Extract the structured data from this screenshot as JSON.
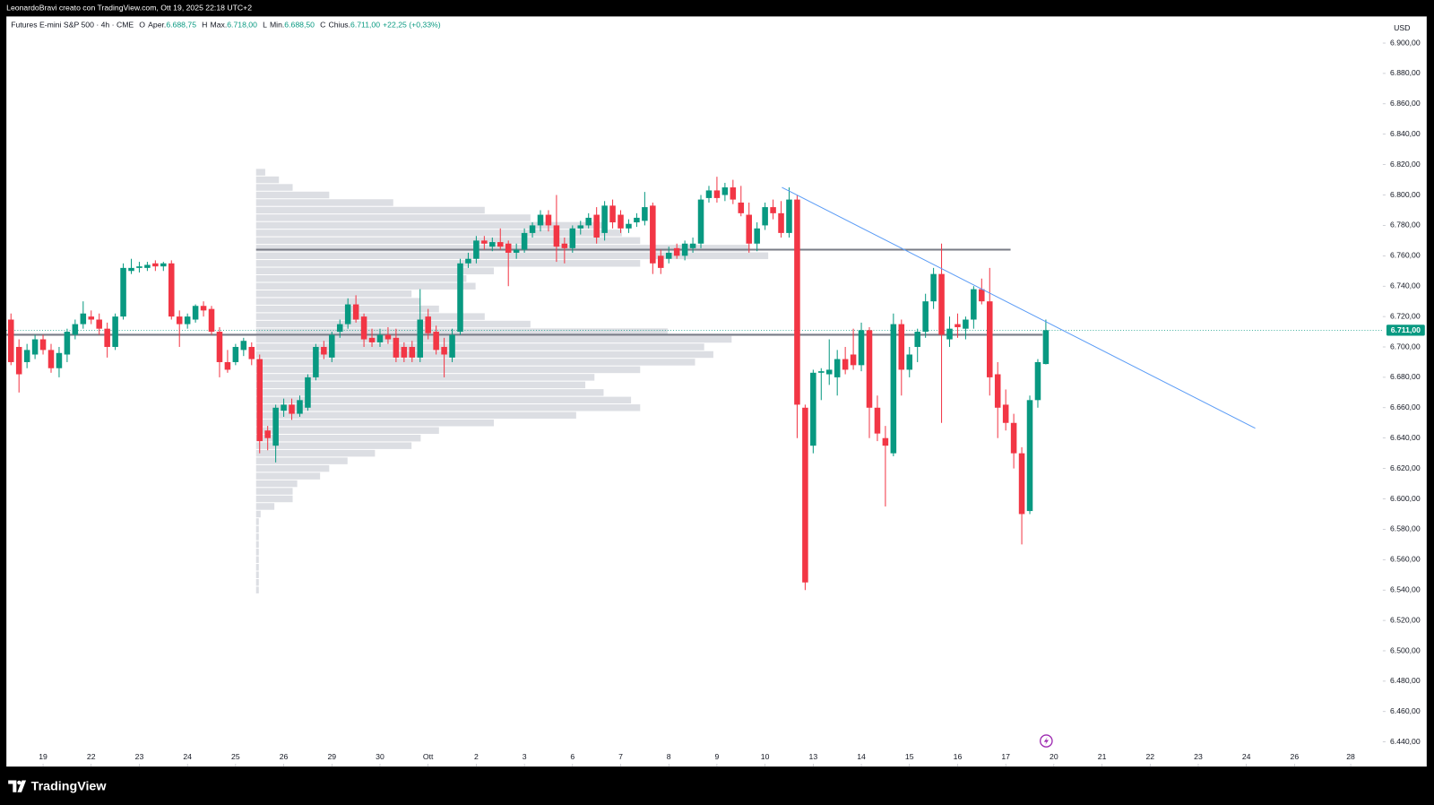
{
  "top_bar": {
    "credit": "LeonardoBravi creato con TradingView.com, Ott 19, 2025 22:18 UTC+2"
  },
  "chart_data": {
    "type": "candlestick",
    "symbol": "Futures E-mini S&P 500 · 4h · CME",
    "legend": [
      {
        "key": "O",
        "name": "Aper.",
        "value": "6.688,75"
      },
      {
        "key": "H",
        "name": "Max.",
        "value": "6.718,00"
      },
      {
        "key": "L",
        "name": "Min.",
        "value": "6.688,50"
      },
      {
        "key": "C",
        "name": "Chius.",
        "value": "6.711,00"
      }
    ],
    "change": "+22,25 (+0,33%)",
    "currency": "USD",
    "up_color": "#089981",
    "down_color": "#f23645",
    "candles": [
      [
        6718,
        6722,
        6688,
        6690
      ],
      [
        6700,
        6705,
        6670,
        6682
      ],
      [
        6690,
        6702,
        6686,
        6698
      ],
      [
        6695,
        6708,
        6692,
        6705
      ],
      [
        6705,
        6708,
        6695,
        6698
      ],
      [
        6698,
        6702,
        6683,
        6686
      ],
      [
        6686,
        6700,
        6680,
        6696
      ],
      [
        6695,
        6712,
        6690,
        6710
      ],
      [
        6708,
        6718,
        6705,
        6715
      ],
      [
        6715,
        6730,
        6712,
        6722
      ],
      [
        6720,
        6724,
        6715,
        6718
      ],
      [
        6718,
        6722,
        6708,
        6712
      ],
      [
        6712,
        6716,
        6693,
        6700
      ],
      [
        6700,
        6722,
        6698,
        6720
      ],
      [
        6720,
        6755,
        6718,
        6752
      ],
      [
        6750,
        6758,
        6748,
        6752
      ],
      [
        6752,
        6756,
        6749,
        6753
      ],
      [
        6752,
        6756,
        6750,
        6754
      ],
      [
        6755,
        6757,
        6750,
        6753
      ],
      [
        6753,
        6756,
        6750,
        6755
      ],
      [
        6755,
        6757,
        6718,
        6720
      ],
      [
        6720,
        6724,
        6700,
        6715
      ],
      [
        6715,
        6722,
        6712,
        6720
      ],
      [
        6718,
        6728,
        6716,
        6727
      ],
      [
        6727,
        6730,
        6720,
        6724
      ],
      [
        6725,
        6727,
        6708,
        6710
      ],
      [
        6710,
        6713,
        6680,
        6690
      ],
      [
        6690,
        6698,
        6683,
        6685
      ],
      [
        6690,
        6702,
        6688,
        6700
      ],
      [
        6698,
        6706,
        6694,
        6704
      ],
      [
        6700,
        6703,
        6688,
        6692
      ],
      [
        6692,
        6695,
        6630,
        6638
      ],
      [
        6645,
        6648,
        6632,
        6640
      ],
      [
        6635,
        6662,
        6624,
        6660
      ],
      [
        6658,
        6666,
        6654,
        6662
      ],
      [
        6662,
        6666,
        6652,
        6656
      ],
      [
        6656,
        6668,
        6654,
        6665
      ],
      [
        6660,
        6682,
        6658,
        6680
      ],
      [
        6680,
        6702,
        6678,
        6700
      ],
      [
        6700,
        6704,
        6692,
        6695
      ],
      [
        6693,
        6710,
        6690,
        6708
      ],
      [
        6710,
        6718,
        6706,
        6715
      ],
      [
        6715,
        6732,
        6712,
        6728
      ],
      [
        6728,
        6734,
        6716,
        6718
      ],
      [
        6720,
        6722,
        6700,
        6705
      ],
      [
        6706,
        6712,
        6700,
        6703
      ],
      [
        6703,
        6712,
        6700,
        6708
      ],
      [
        6708,
        6713,
        6702,
        6705
      ],
      [
        6706,
        6712,
        6690,
        6693
      ],
      [
        6700,
        6703,
        6690,
        6693
      ],
      [
        6700,
        6704,
        6690,
        6693
      ],
      [
        6693,
        6738,
        6690,
        6718
      ],
      [
        6720,
        6725,
        6705,
        6709
      ],
      [
        6710,
        6714,
        6695,
        6698
      ],
      [
        6700,
        6706,
        6680,
        6695
      ],
      [
        6693,
        6712,
        6690,
        6708
      ],
      [
        6710,
        6758,
        6708,
        6755
      ],
      [
        6755,
        6762,
        6752,
        6758
      ],
      [
        6758,
        6773,
        6755,
        6770
      ],
      [
        6770,
        6773,
        6764,
        6768
      ],
      [
        6766,
        6772,
        6763,
        6769
      ],
      [
        6769,
        6778,
        6764,
        6766
      ],
      [
        6768,
        6770,
        6740,
        6762
      ],
      [
        6762,
        6768,
        6758,
        6764
      ],
      [
        6764,
        6778,
        6762,
        6775
      ],
      [
        6775,
        6782,
        6772,
        6780
      ],
      [
        6780,
        6790,
        6776,
        6787
      ],
      [
        6787,
        6790,
        6776,
        6780
      ],
      [
        6780,
        6800,
        6756,
        6766
      ],
      [
        6768,
        6772,
        6755,
        6765
      ],
      [
        6765,
        6780,
        6762,
        6778
      ],
      [
        6778,
        6783,
        6774,
        6780
      ],
      [
        6780,
        6788,
        6778,
        6785
      ],
      [
        6787,
        6792,
        6768,
        6772
      ],
      [
        6775,
        6796,
        6770,
        6793
      ],
      [
        6793,
        6797,
        6778,
        6782
      ],
      [
        6787,
        6790,
        6775,
        6778
      ],
      [
        6778,
        6784,
        6775,
        6781
      ],
      [
        6782,
        6788,
        6779,
        6785
      ],
      [
        6783,
        6802,
        6780,
        6792
      ],
      [
        6793,
        6795,
        6748,
        6755
      ],
      [
        6760,
        6764,
        6748,
        6752
      ],
      [
        6758,
        6766,
        6755,
        6762
      ],
      [
        6765,
        6768,
        6758,
        6760
      ],
      [
        6760,
        6770,
        6757,
        6768
      ],
      [
        6765,
        6772,
        6762,
        6768
      ],
      [
        6768,
        6800,
        6765,
        6797
      ],
      [
        6798,
        6806,
        6795,
        6803
      ],
      [
        6803,
        6812,
        6795,
        6798
      ],
      [
        6800,
        6808,
        6796,
        6805
      ],
      [
        6805,
        6810,
        6794,
        6797
      ],
      [
        6795,
        6806,
        6786,
        6788
      ],
      [
        6787,
        6795,
        6762,
        6768
      ],
      [
        6768,
        6782,
        6763,
        6778
      ],
      [
        6780,
        6795,
        6777,
        6792
      ],
      [
        6792,
        6797,
        6784,
        6788
      ],
      [
        6788,
        6796,
        6772,
        6775
      ],
      [
        6775,
        6805,
        6772,
        6797
      ],
      [
        6797,
        6800,
        6640,
        6662
      ],
      [
        6660,
        6662,
        6540,
        6545
      ],
      [
        6635,
        6685,
        6630,
        6683
      ],
      [
        6683,
        6686,
        6665,
        6684
      ],
      [
        6682,
        6705,
        6675,
        6685
      ],
      [
        6680,
        6698,
        6668,
        6692
      ],
      [
        6692,
        6700,
        6682,
        6685
      ],
      [
        6695,
        6712,
        6685,
        6688
      ],
      [
        6688,
        6716,
        6684,
        6711
      ],
      [
        6711,
        6713,
        6640,
        6660
      ],
      [
        6660,
        6668,
        6638,
        6643
      ],
      [
        6640,
        6648,
        6595,
        6635
      ],
      [
        6630,
        6722,
        6628,
        6715
      ],
      [
        6715,
        6718,
        6668,
        6685
      ],
      [
        6685,
        6700,
        6680,
        6695
      ],
      [
        6700,
        6712,
        6690,
        6710
      ],
      [
        6710,
        6735,
        6706,
        6730
      ],
      [
        6730,
        6752,
        6725,
        6748
      ],
      [
        6748,
        6768,
        6650,
        6708
      ],
      [
        6705,
        6720,
        6700,
        6712
      ],
      [
        6715,
        6722,
        6706,
        6713
      ],
      [
        6712,
        6720,
        6705,
        6718
      ],
      [
        6718,
        6740,
        6712,
        6738
      ],
      [
        6738,
        6745,
        6728,
        6730
      ],
      [
        6730,
        6752,
        6668,
        6680
      ],
      [
        6682,
        6690,
        6640,
        6660
      ],
      [
        6662,
        6672,
        6645,
        6650
      ],
      [
        6650,
        6656,
        6620,
        6630
      ],
      [
        6630,
        6634,
        6570,
        6590
      ],
      [
        6592,
        6668,
        6590,
        6665
      ],
      [
        6665,
        6692,
        6660,
        6690
      ],
      [
        6688.75,
        6718,
        6688.5,
        6711
      ]
    ],
    "volume_profile": {
      "color": "#dcdee3",
      "prices": [
        6540,
        6545,
        6550,
        6555,
        6560,
        6565,
        6570,
        6575,
        6580,
        6585,
        6590,
        6595,
        6600,
        6605,
        6610,
        6615,
        6620,
        6625,
        6630,
        6635,
        6640,
        6645,
        6650,
        6655,
        6660,
        6665,
        6670,
        6675,
        6680,
        6685,
        6690,
        6695,
        6700,
        6705,
        6710,
        6715,
        6720,
        6725,
        6730,
        6735,
        6740,
        6745,
        6750,
        6755,
        6760,
        6765,
        6770,
        6775,
        6780,
        6785,
        6790,
        6795,
        6800,
        6805,
        6810,
        6815
      ],
      "volumes": [
        3,
        3,
        3,
        3,
        3,
        3,
        3,
        3,
        3,
        3,
        5,
        20,
        40,
        40,
        45,
        70,
        80,
        100,
        130,
        170,
        180,
        200,
        260,
        350,
        420,
        410,
        380,
        360,
        370,
        420,
        480,
        500,
        490,
        520,
        450,
        300,
        250,
        200,
        180,
        170,
        240,
        230,
        260,
        420,
        560,
        540,
        420,
        400,
        380,
        300,
        250,
        150,
        80,
        40,
        25,
        10
      ]
    },
    "levels": [
      {
        "price": 6764,
        "color": "#787b86"
      },
      {
        "price": 6708,
        "color": "#787b86"
      }
    ],
    "trendline": {
      "x": [
        96.1,
        155.1
      ],
      "y": [
        6805,
        6646.5
      ],
      "color": "#5b9cf6"
    },
    "last_price": 6711,
    "last_price_label": "6.711,00",
    "xlim": [
      -0.57,
      171
    ],
    "xticks": [
      {
        "value": 4,
        "label": "19"
      },
      {
        "value": 10,
        "label": "22"
      },
      {
        "value": 16,
        "label": "23"
      },
      {
        "value": 22,
        "label": "24"
      },
      {
        "value": 28,
        "label": "25"
      },
      {
        "value": 34,
        "label": "26"
      },
      {
        "value": 40,
        "label": "29"
      },
      {
        "value": 46,
        "label": "30"
      },
      {
        "value": 52,
        "label": "Ott"
      },
      {
        "value": 58,
        "label": "2"
      },
      {
        "value": 64,
        "label": "3"
      },
      {
        "value": 70,
        "label": "6"
      },
      {
        "value": 76,
        "label": "7"
      },
      {
        "value": 82,
        "label": "8"
      },
      {
        "value": 88,
        "label": "9"
      },
      {
        "value": 94,
        "label": "10"
      },
      {
        "value": 100,
        "label": "13"
      },
      {
        "value": 106,
        "label": "14"
      },
      {
        "value": 112,
        "label": "15"
      },
      {
        "value": 118,
        "label": "16"
      },
      {
        "value": 124,
        "label": "17"
      },
      {
        "value": 130,
        "label": "20"
      },
      {
        "value": 136,
        "label": "21"
      },
      {
        "value": 142,
        "label": "22"
      },
      {
        "value": 148,
        "label": "23"
      },
      {
        "value": 154,
        "label": "24"
      },
      {
        "value": 160,
        "label": "26"
      },
      {
        "value": 167,
        "label": "28"
      }
    ],
    "ylim": [
      6423.8,
      6917.5
    ],
    "yticks": [
      {
        "value": 6440,
        "label": "6.440,00"
      },
      {
        "value": 6460,
        "label": "6.460,00"
      },
      {
        "value": 6480,
        "label": "6.480,00"
      },
      {
        "value": 6500,
        "label": "6.500,00"
      },
      {
        "value": 6520,
        "label": "6.520,00"
      },
      {
        "value": 6540,
        "label": "6.540,00"
      },
      {
        "value": 6560,
        "label": "6.560,00"
      },
      {
        "value": 6580,
        "label": "6.580,00"
      },
      {
        "value": 6600,
        "label": "6.600,00"
      },
      {
        "value": 6620,
        "label": "6.620,00"
      },
      {
        "value": 6640,
        "label": "6.640,00"
      },
      {
        "value": 6660,
        "label": "6.660,00"
      },
      {
        "value": 6680,
        "label": "6.680,00"
      },
      {
        "value": 6700,
        "label": "6.700,00"
      },
      {
        "value": 6720,
        "label": "6.720,00"
      },
      {
        "value": 6740,
        "label": "6.740,00"
      },
      {
        "value": 6760,
        "label": "6.760,00"
      },
      {
        "value": 6780,
        "label": "6.780,00"
      },
      {
        "value": 6800,
        "label": "6.800,00"
      },
      {
        "value": 6820,
        "label": "6.820,00"
      },
      {
        "value": 6840,
        "label": "6.840,00"
      },
      {
        "value": 6860,
        "label": "6.860,00"
      },
      {
        "value": 6880,
        "label": "6.880,00"
      },
      {
        "value": 6900,
        "label": "6.900,00"
      }
    ]
  },
  "footer": {
    "brand": "TradingView"
  }
}
